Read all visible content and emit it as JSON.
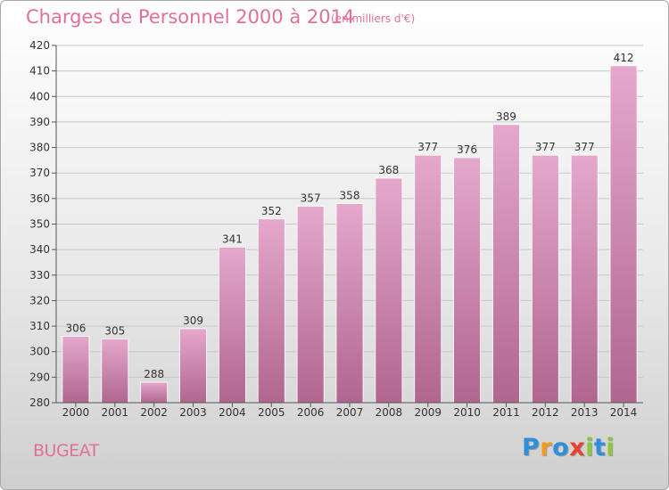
{
  "title": "Charges de Personnel 2000 à 2014",
  "subtitle": "(en milliers d'€)",
  "place": "BUGEAT",
  "logo": {
    "letters": [
      "P",
      "r",
      "o",
      "x",
      "i",
      "t",
      "i"
    ],
    "colors": [
      "#2f8fd8",
      "#f29a1e",
      "#2f8fd8",
      "#e8412f",
      "#8cc63f",
      "#2f8fd8",
      "#8cc63f"
    ]
  },
  "colors": {
    "bar_top": "#e5a8cc",
    "bar_bottom": "#b0668f",
    "grid": "#c8c8c8"
  },
  "chart_data": {
    "type": "bar",
    "categories": [
      "2000",
      "2001",
      "2002",
      "2003",
      "2004",
      "2005",
      "2006",
      "2007",
      "2008",
      "2009",
      "2010",
      "2011",
      "2012",
      "2013",
      "2014"
    ],
    "values": [
      306,
      305,
      288,
      309,
      341,
      352,
      357,
      358,
      368,
      377,
      376,
      389,
      377,
      377,
      412
    ],
    "title": "Charges de Personnel 2000 à 2014",
    "subtitle": "(en milliers d'€)",
    "xlabel": "",
    "ylabel": "",
    "ylim": [
      280,
      420
    ],
    "yticks": [
      280,
      290,
      300,
      310,
      320,
      330,
      340,
      350,
      360,
      370,
      380,
      390,
      400,
      410,
      420
    ],
    "grid": true,
    "data_labels": true
  }
}
